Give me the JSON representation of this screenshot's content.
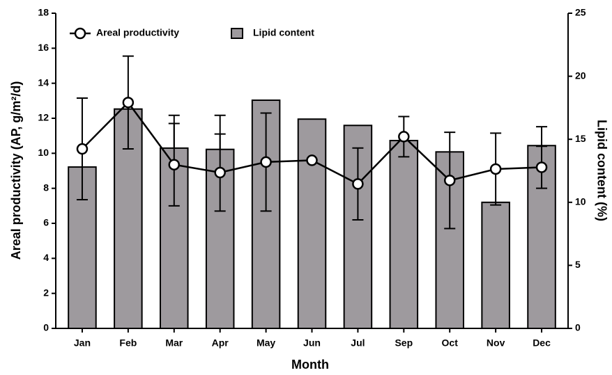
{
  "chart_data": {
    "type": "bar-line",
    "x_label": "Month",
    "y_label": "Areal productivity (AP, g/m²/d)",
    "y2_label": "Lipid content (%)",
    "categories": [
      "Jan",
      "Feb",
      "Mar",
      "Apr",
      "May",
      "Jun",
      "Jul",
      "Sep",
      "Oct",
      "Nov",
      "Dec"
    ],
    "series": [
      {
        "name": "Areal productivity",
        "type": "line",
        "color": "#000000",
        "axis": "y",
        "values": [
          10.25,
          12.9,
          9.35,
          8.9,
          9.5,
          9.6,
          8.25,
          10.95,
          8.45,
          9.1,
          9.2
        ],
        "errors": [
          2.9,
          2.65,
          2.35,
          2.2,
          2.8,
          null,
          2.05,
          1.15,
          2.75,
          2.05,
          1.2
        ]
      },
      {
        "name": "Lipid content",
        "type": "bar",
        "color": "#9e9a9e",
        "axis": "y2",
        "values": [
          12.8,
          17.4,
          14.3,
          14.2,
          18.1,
          16.6,
          16.1,
          14.9,
          14.0,
          10.0,
          14.5
        ],
        "errors": [
          null,
          null,
          2.6,
          2.7,
          null,
          null,
          null,
          null,
          null,
          null,
          1.5
        ]
      }
    ],
    "ylim": [
      0,
      18
    ],
    "yticks": [
      0,
      2,
      4,
      6,
      8,
      10,
      12,
      14,
      16,
      18
    ],
    "y2lim": [
      0,
      25
    ],
    "y2ticks": [
      0,
      5,
      10,
      15,
      20,
      25
    ],
    "legend": "top-left"
  }
}
